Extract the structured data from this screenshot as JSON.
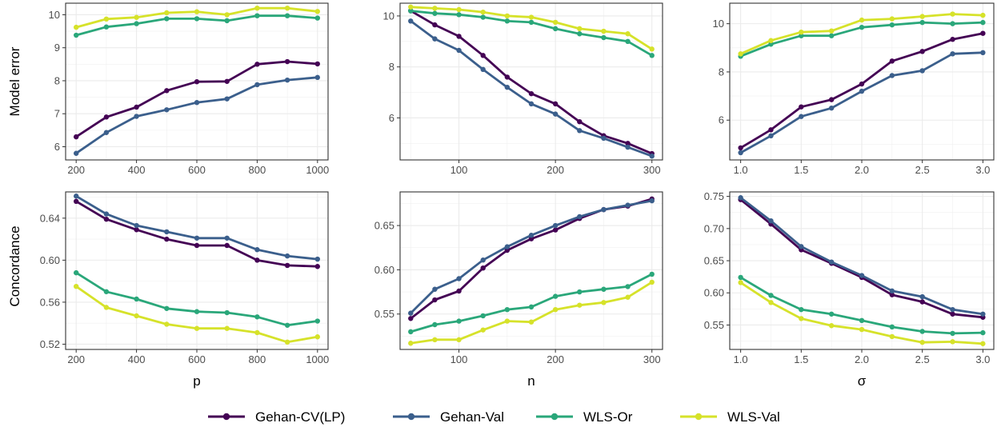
{
  "legend": {
    "series": [
      {
        "name": "Gehan-CV(LP)",
        "color": "#440154"
      },
      {
        "name": "Gehan-Val",
        "color": "#3b5f8c"
      },
      {
        "name": "WLS-Or",
        "color": "#2aa77a"
      },
      {
        "name": "WLS-Val",
        "color": "#d6e22a"
      }
    ]
  },
  "row_labels": [
    "Model error",
    "Concordance"
  ],
  "col_labels": [
    "p",
    "n",
    "σ"
  ],
  "chart_data": [
    {
      "type": "line",
      "row": 0,
      "col": 0,
      "xlabel": "p",
      "ylabel": "Model error",
      "x": [
        200,
        300,
        400,
        500,
        600,
        700,
        800,
        900,
        1000
      ],
      "xlim": [
        165,
        1035
      ],
      "ylim": [
        5.6,
        10.35
      ],
      "xticks": [
        200,
        400,
        600,
        800,
        1000
      ],
      "yticks": [
        6,
        7,
        8,
        9,
        10
      ],
      "ydec": 0,
      "grid": true,
      "series": [
        {
          "name": "Gehan-CV(LP)",
          "values": [
            6.3,
            6.9,
            7.2,
            7.7,
            7.97,
            7.98,
            8.5,
            8.58,
            8.51
          ]
        },
        {
          "name": "Gehan-Val",
          "values": [
            5.8,
            6.43,
            6.92,
            7.12,
            7.34,
            7.45,
            7.88,
            8.02,
            8.1
          ]
        },
        {
          "name": "WLS-Or",
          "values": [
            9.38,
            9.63,
            9.73,
            9.88,
            9.88,
            9.82,
            9.97,
            9.97,
            9.9
          ]
        },
        {
          "name": "WLS-Val",
          "values": [
            9.62,
            9.87,
            9.92,
            10.06,
            10.09,
            10.0,
            10.2,
            10.2,
            10.1
          ]
        }
      ]
    },
    {
      "type": "line",
      "row": 0,
      "col": 1,
      "xlabel": "n",
      "ylabel": "",
      "x": [
        50,
        75,
        100,
        125,
        150,
        175,
        200,
        225,
        250,
        275,
        300
      ],
      "xlim": [
        39,
        311
      ],
      "ylim": [
        4.35,
        10.5
      ],
      "xticks": [
        100,
        200,
        300
      ],
      "yticks": [
        6,
        8,
        10
      ],
      "ydec": 0,
      "grid": true,
      "series": [
        {
          "name": "Gehan-CV(LP)",
          "values": [
            10.2,
            9.65,
            9.2,
            8.45,
            7.6,
            6.95,
            6.55,
            5.85,
            5.3,
            5.0,
            4.6
          ]
        },
        {
          "name": "Gehan-Val",
          "values": [
            9.8,
            9.1,
            8.65,
            7.9,
            7.2,
            6.55,
            6.15,
            5.5,
            5.2,
            4.85,
            4.5
          ]
        },
        {
          "name": "WLS-Or",
          "values": [
            10.2,
            10.1,
            10.05,
            9.95,
            9.8,
            9.75,
            9.5,
            9.3,
            9.15,
            9.0,
            8.45
          ]
        },
        {
          "name": "WLS-Val",
          "values": [
            10.35,
            10.3,
            10.25,
            10.15,
            10.0,
            9.95,
            9.75,
            9.5,
            9.4,
            9.3,
            8.7
          ]
        }
      ]
    },
    {
      "type": "line",
      "row": 0,
      "col": 2,
      "xlabel": "σ",
      "ylabel": "",
      "x": [
        1.0,
        1.25,
        1.5,
        1.75,
        2.0,
        2.25,
        2.5,
        2.75,
        3.0
      ],
      "xlim": [
        0.91,
        3.09
      ],
      "ylim": [
        4.35,
        10.85
      ],
      "xticks": [
        1.0,
        1.5,
        2.0,
        2.5,
        3.0
      ],
      "yticks": [
        6,
        8,
        10
      ],
      "ydec": 0,
      "xdec": 1,
      "grid": true,
      "series": [
        {
          "name": "Gehan-CV(LP)",
          "values": [
            4.85,
            5.6,
            6.55,
            6.85,
            7.5,
            8.45,
            8.85,
            9.35,
            9.6
          ]
        },
        {
          "name": "Gehan-Val",
          "values": [
            4.65,
            5.35,
            6.15,
            6.5,
            7.2,
            7.85,
            8.05,
            8.75,
            8.8
          ]
        },
        {
          "name": "WLS-Or",
          "values": [
            8.65,
            9.15,
            9.5,
            9.5,
            9.85,
            9.95,
            10.05,
            10.0,
            10.05
          ]
        },
        {
          "name": "WLS-Val",
          "values": [
            8.75,
            9.3,
            9.65,
            9.7,
            10.15,
            10.2,
            10.3,
            10.4,
            10.35
          ]
        }
      ]
    },
    {
      "type": "line",
      "row": 1,
      "col": 0,
      "xlabel": "p",
      "ylabel": "Concordance",
      "x": [
        200,
        300,
        400,
        500,
        600,
        700,
        800,
        900,
        1000
      ],
      "xlim": [
        165,
        1035
      ],
      "ylim": [
        0.515,
        0.665
      ],
      "xticks": [
        200,
        400,
        600,
        800,
        1000
      ],
      "yticks": [
        0.52,
        0.56,
        0.6,
        0.64
      ],
      "ydec": 2,
      "grid": true,
      "series": [
        {
          "name": "Gehan-CV(LP)",
          "values": [
            0.656,
            0.639,
            0.629,
            0.62,
            0.614,
            0.614,
            0.6,
            0.595,
            0.594
          ]
        },
        {
          "name": "Gehan-Val",
          "values": [
            0.661,
            0.644,
            0.633,
            0.627,
            0.621,
            0.621,
            0.61,
            0.604,
            0.601
          ]
        },
        {
          "name": "WLS-Or",
          "values": [
            0.588,
            0.57,
            0.563,
            0.554,
            0.551,
            0.55,
            0.546,
            0.538,
            0.542
          ]
        },
        {
          "name": "WLS-Val",
          "values": [
            0.575,
            0.555,
            0.547,
            0.539,
            0.535,
            0.535,
            0.531,
            0.522,
            0.527
          ]
        }
      ]
    },
    {
      "type": "line",
      "row": 1,
      "col": 1,
      "xlabel": "n",
      "ylabel": "",
      "x": [
        50,
        75,
        100,
        125,
        150,
        175,
        200,
        225,
        250,
        275,
        300
      ],
      "xlim": [
        39,
        311
      ],
      "ylim": [
        0.51,
        0.688
      ],
      "xticks": [
        100,
        200,
        300
      ],
      "yticks": [
        0.55,
        0.6,
        0.65
      ],
      "ydec": 2,
      "grid": true,
      "series": [
        {
          "name": "Gehan-CV(LP)",
          "values": [
            0.545,
            0.566,
            0.576,
            0.602,
            0.622,
            0.635,
            0.645,
            0.658,
            0.668,
            0.672,
            0.68
          ]
        },
        {
          "name": "Gehan-Val",
          "values": [
            0.551,
            0.578,
            0.59,
            0.611,
            0.626,
            0.639,
            0.65,
            0.66,
            0.668,
            0.673,
            0.678
          ]
        },
        {
          "name": "WLS-Or",
          "values": [
            0.53,
            0.538,
            0.542,
            0.548,
            0.555,
            0.558,
            0.57,
            0.575,
            0.578,
            0.581,
            0.595
          ]
        },
        {
          "name": "WLS-Val",
          "values": [
            0.517,
            0.521,
            0.521,
            0.532,
            0.542,
            0.541,
            0.555,
            0.56,
            0.563,
            0.569,
            0.586
          ]
        }
      ]
    },
    {
      "type": "line",
      "row": 1,
      "col": 2,
      "xlabel": "σ",
      "ylabel": "",
      "x": [
        1.0,
        1.25,
        1.5,
        1.75,
        2.0,
        2.25,
        2.5,
        2.75,
        3.0
      ],
      "xlim": [
        0.91,
        3.09
      ],
      "ylim": [
        0.512,
        0.757
      ],
      "xticks": [
        1.0,
        1.5,
        2.0,
        2.5,
        3.0
      ],
      "yticks": [
        0.55,
        0.6,
        0.65,
        0.7,
        0.75
      ],
      "ydec": 2,
      "xdec": 1,
      "grid": true,
      "series": [
        {
          "name": "Gehan-CV(LP)",
          "values": [
            0.745,
            0.707,
            0.667,
            0.646,
            0.624,
            0.597,
            0.586,
            0.567,
            0.562
          ]
        },
        {
          "name": "Gehan-Val",
          "values": [
            0.748,
            0.712,
            0.672,
            0.648,
            0.627,
            0.603,
            0.594,
            0.574,
            0.567
          ]
        },
        {
          "name": "WLS-Or",
          "values": [
            0.624,
            0.596,
            0.574,
            0.567,
            0.557,
            0.547,
            0.54,
            0.537,
            0.538
          ]
        },
        {
          "name": "WLS-Val",
          "values": [
            0.616,
            0.585,
            0.56,
            0.549,
            0.543,
            0.532,
            0.523,
            0.524,
            0.521
          ]
        }
      ]
    }
  ]
}
